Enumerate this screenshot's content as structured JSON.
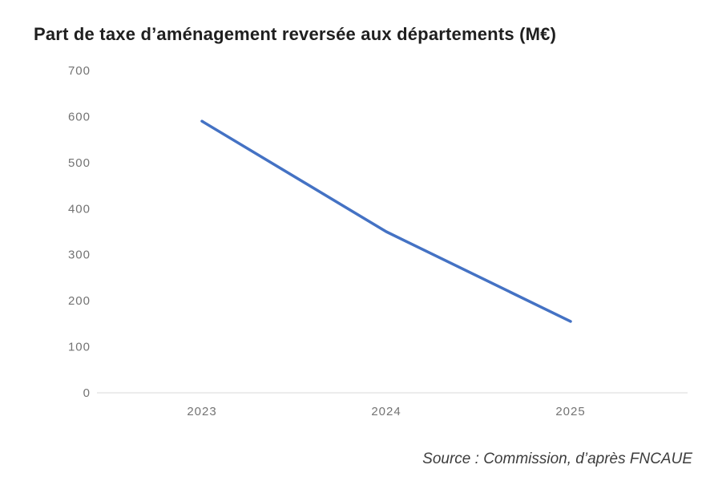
{
  "chart_data": {
    "type": "line",
    "title": "Part de taxe d’aménagement reversée aux départements (M€)",
    "x": [
      "2023",
      "2024",
      "2025"
    ],
    "series": [
      {
        "name": "part-taxe-amenagement",
        "values": [
          590,
          350,
          155
        ]
      }
    ],
    "ylim": [
      0,
      700
    ],
    "yticks": [
      0,
      100,
      200,
      300,
      400,
      500,
      600,
      700
    ],
    "xlabel": "",
    "ylabel": "",
    "grid": false,
    "legend_position": "none",
    "line_color": "#4472C4",
    "axis_line_color": "#d9d9d9",
    "source": "Source : Commission, d’après FNCAUE"
  }
}
